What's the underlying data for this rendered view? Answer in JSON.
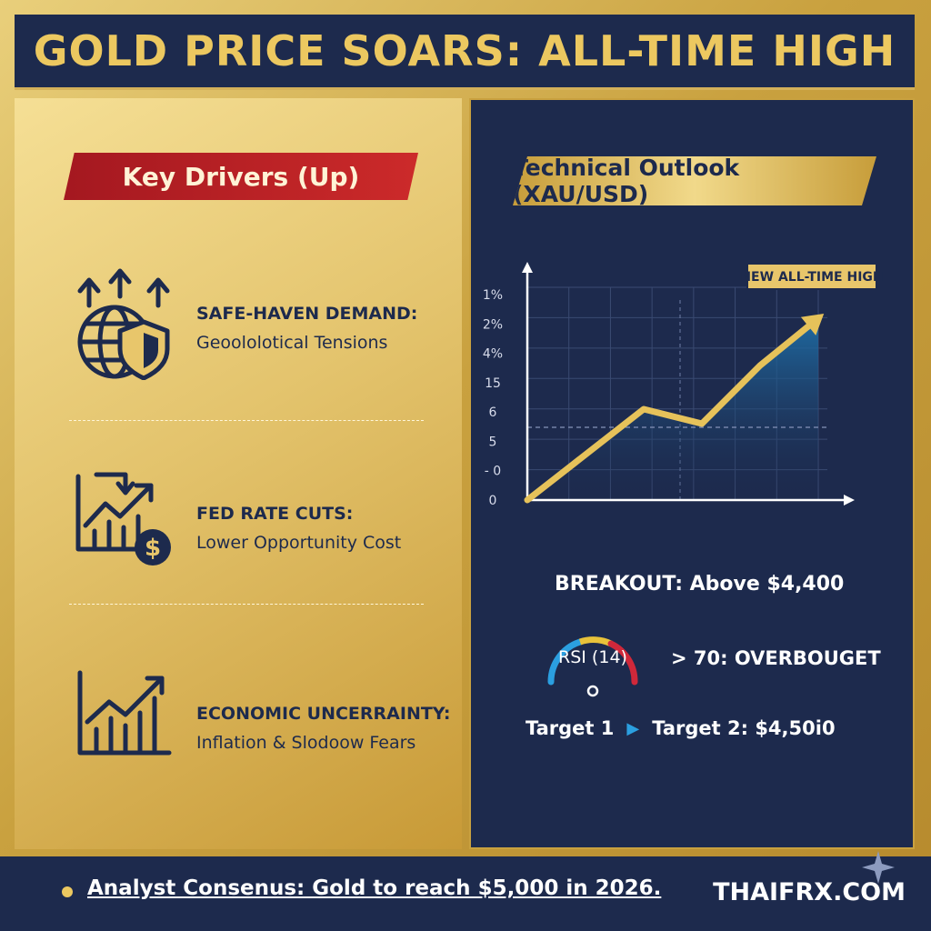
{
  "header": {
    "title": "GOLD PRICE SOARS: ALL-TIME HIGH"
  },
  "left": {
    "banner": "Key Drivers (Up)",
    "drivers": [
      {
        "icon": "globe-shield-icon",
        "title": "SAFE-HAVEN DEMAND:",
        "subtitle": "Geoololotical Tensions"
      },
      {
        "icon": "chart-dollar-icon",
        "title": "FED RATE CUTS:",
        "subtitle": "Lower Opportunity Cost"
      },
      {
        "icon": "growth-chart-icon",
        "title": "ECONOMIC UNCERRAINTY:",
        "subtitle": "Inflation & Slodoow Fears"
      }
    ]
  },
  "right": {
    "banner": "Technical Outlook (XAU/USD)",
    "breakout": "BREAKOUT: Above $4,400",
    "rsi_label": "RSI (14)",
    "rsi_status": "> 70: OVERBOUGET",
    "target1": "Target 1",
    "target2": "Target 2:  $4,50i0"
  },
  "chart_data": {
    "type": "area",
    "title": "",
    "xlabel": "",
    "ylabel": "",
    "y_tick_labels": [
      "0",
      "- 0",
      "5",
      "6",
      "15",
      "4%",
      "2%",
      "1%"
    ],
    "x": [
      0,
      1,
      2,
      3,
      4,
      5
    ],
    "series": [
      {
        "values": [
          0,
          2.5,
          5,
          4.2,
          7.4,
          10
        ]
      }
    ],
    "ylim": [
      0,
      11
    ],
    "annotation": "NEW ALL-TIME HIGH",
    "reference_line_y": 4,
    "grid": true,
    "colors": {
      "line": "#e6c25a",
      "fill": "#1f6fa8",
      "axis": "#ffffff",
      "grid": "#3a4a72"
    }
  },
  "footer": {
    "consensus": "Analyst Consenus: Gold to reach $5,000 in 2026.",
    "brand": "THAIFRX.COM"
  },
  "colors": {
    "navy": "#1d2a4d",
    "gold": "#ecc860",
    "red": "#b5202a"
  }
}
